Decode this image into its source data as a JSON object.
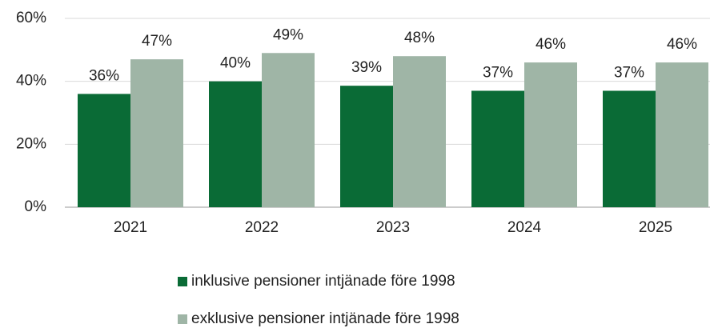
{
  "chart_data": {
    "type": "bar",
    "categories": [
      "2021",
      "2022",
      "2023",
      "2024",
      "2025"
    ],
    "series": [
      {
        "name": "inklusive pensioner intjänade före 1998",
        "color": "#0a6b36",
        "values": [
          36,
          40,
          38.6,
          37,
          37
        ],
        "value_labels": [
          "36%",
          "40%",
          "39%",
          "37%",
          "37%"
        ]
      },
      {
        "name": "exklusive pensioner intjänade före 1998",
        "color": "#9fb5a6",
        "values": [
          47,
          49,
          48,
          46,
          46
        ],
        "value_labels": [
          "47%",
          "49%",
          "48%",
          "46%",
          "46%"
        ]
      }
    ],
    "ylim": [
      0,
      60
    ],
    "yticks": [
      {
        "value": 0,
        "label": "0%"
      },
      {
        "value": 20,
        "label": "20%"
      },
      {
        "value": 40,
        "label": "40%"
      },
      {
        "value": 60,
        "label": "60%"
      }
    ],
    "grid": true,
    "legend": "bottom"
  }
}
